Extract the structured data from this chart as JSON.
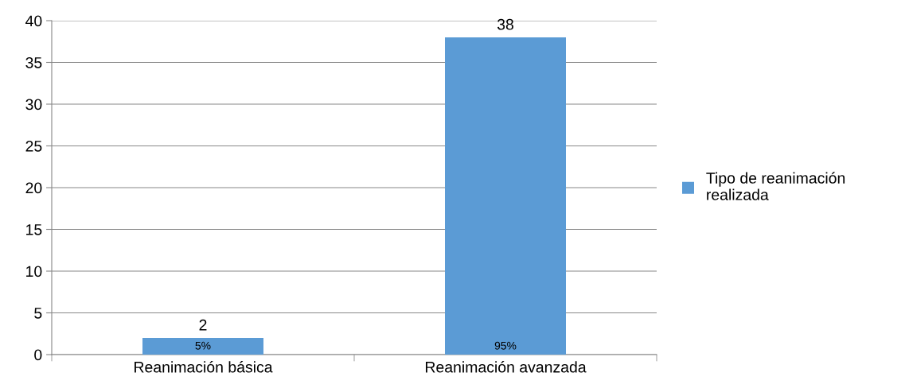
{
  "chart_data": {
    "type": "bar",
    "categories": [
      "Reanimación básica",
      "Reanimación avanzada"
    ],
    "series": [
      {
        "name": "Tipo de reanimación\nrealizada",
        "color": "#5b9bd5",
        "values": [
          2,
          38
        ]
      }
    ],
    "ylim": [
      0,
      40
    ],
    "yticks": [
      0,
      5,
      10,
      15,
      20,
      25,
      30,
      35,
      40
    ],
    "grid": "y",
    "legend": "right",
    "data_labels": true,
    "annotations": [
      "5%",
      "95%"
    ]
  }
}
